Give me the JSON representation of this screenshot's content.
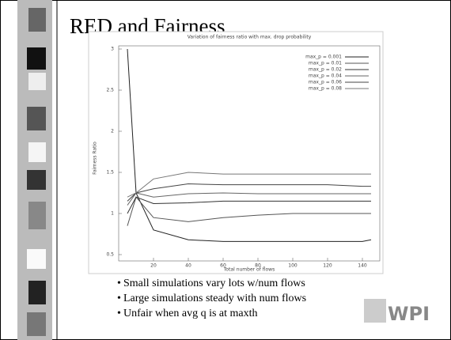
{
  "slide": {
    "title": "RED and Fairness",
    "bullets": [
      "Small simulations vary lots w/num flows",
      "Large simulations steady with num flows",
      "Unfair when avg q is at maxth"
    ],
    "logo": "WPI"
  },
  "chart_data": {
    "type": "line",
    "title": "Variation of fairness ratio with max. drop probability",
    "x_label": "Total number of flows",
    "y_label": "Fairness Ratio",
    "x": [
      5,
      10,
      20,
      40,
      60,
      80,
      100,
      120,
      140,
      145
    ],
    "series": [
      {
        "name": "max_p = 0.001",
        "color": "#222222",
        "values": [
          3,
          1.25,
          0.8,
          0.68,
          0.66,
          0.66,
          0.66,
          0.66,
          0.66,
          0.68
        ]
      },
      {
        "name": "max_p = 0.01",
        "color": "#555555",
        "values": [
          0.85,
          1.2,
          0.95,
          0.9,
          0.95,
          0.98,
          1.0,
          1.0,
          1.0,
          1.0
        ]
      },
      {
        "name": "max_p = 0.02",
        "color": "#333333",
        "values": [
          1.0,
          1.2,
          1.12,
          1.13,
          1.15,
          1.15,
          1.15,
          1.15,
          1.15,
          1.15
        ]
      },
      {
        "name": "max_p = 0.04",
        "color": "#666666",
        "values": [
          1.1,
          1.25,
          1.2,
          1.24,
          1.25,
          1.24,
          1.24,
          1.24,
          1.24,
          1.24
        ]
      },
      {
        "name": "max_p = 0.06",
        "color": "#444444",
        "values": [
          1.15,
          1.25,
          1.3,
          1.36,
          1.35,
          1.35,
          1.35,
          1.35,
          1.33,
          1.33
        ]
      },
      {
        "name": "max_p = 0.08",
        "color": "#777777",
        "values": [
          1.2,
          1.25,
          1.42,
          1.5,
          1.48,
          1.48,
          1.48,
          1.48,
          1.48,
          1.48
        ]
      }
    ],
    "xlim": [
      0,
      150
    ],
    "xticks": [
      20,
      40,
      60,
      80,
      100,
      120,
      140
    ],
    "ylim": [
      0.5,
      3
    ],
    "yticks": [
      0.5,
      1,
      1.5,
      2,
      2.5,
      3
    ]
  }
}
